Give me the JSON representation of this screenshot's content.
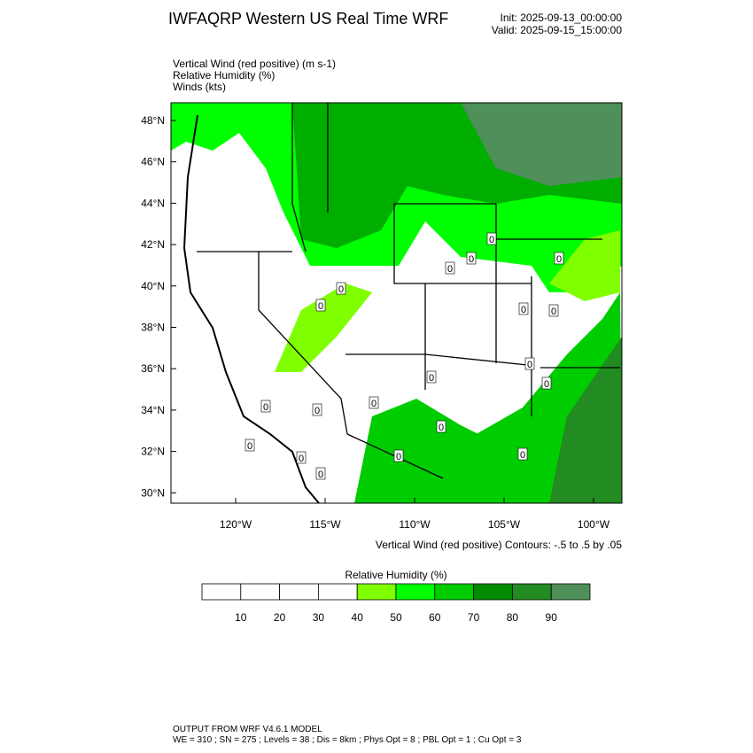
{
  "header": {
    "title": "IWFAQRP Western US Real Time WRF",
    "init": "Init: 2025-09-13_00:00:00",
    "valid": "Valid: 2025-09-15_15:00:00"
  },
  "fields": [
    "Vertical Wind (red positive)   (m s-1)",
    "Relative Humidity   (%)",
    "Winds   (kts)"
  ],
  "map": {
    "lat_labels": [
      "48°N",
      "46°N",
      "44°N",
      "42°N",
      "40°N",
      "38°N",
      "36°N",
      "34°N",
      "32°N",
      "30°N"
    ],
    "lon_labels": [
      "120°W",
      "115°W",
      "110°W",
      "105°W",
      "100°W"
    ],
    "contour_note": "Vertical Wind (red positive) Contours: -.5 to .5 by .05",
    "contour_labels": [
      "0",
      "0",
      "0",
      "0",
      "0",
      "0",
      "0",
      "0",
      "0",
      "0",
      "0",
      "0",
      "0",
      "0",
      "0",
      "0",
      "0",
      "0",
      "0",
      "0"
    ]
  },
  "colorbar": {
    "title": "Relative Humidity  (%)",
    "labels": [
      "10",
      "20",
      "30",
      "40",
      "50",
      "60",
      "70",
      "80",
      "90"
    ],
    "colors": [
      "#ffffff",
      "#ffffff",
      "#ffffff",
      "#ffffff",
      "#80ff00",
      "#00ff00",
      "#00cd00",
      "#008b00",
      "#228b22",
      "#4f8f5a"
    ]
  },
  "footer": [
    "OUTPUT FROM WRF V4.6.1 MODEL",
    "WE = 310 ; SN = 275 ; Levels = 38 ; Dis = 8km ; Phys Opt = 8 ; PBL Opt = 1 ; Cu Opt = 3"
  ]
}
